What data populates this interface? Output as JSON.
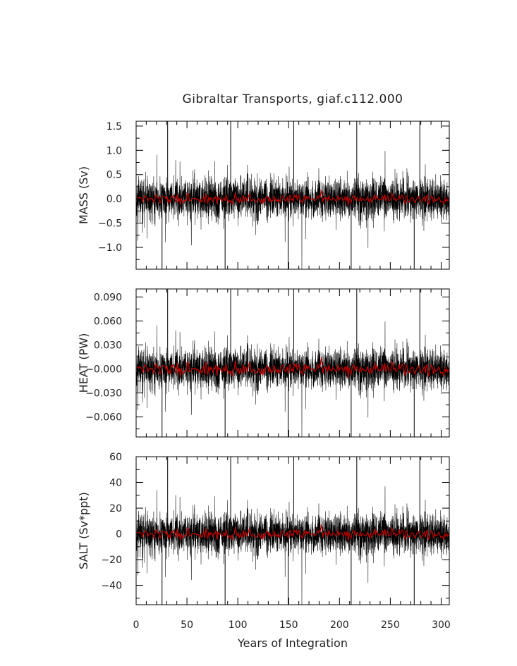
{
  "chart_data": {
    "type": "line",
    "title": "Gibraltar Transports, giaf.c112.000",
    "xlabel": "Years of Integration",
    "xlim": [
      0,
      308
    ],
    "x_ticks": [
      "0",
      "50",
      "100",
      "150",
      "200",
      "250",
      "300"
    ],
    "x_tick_values": [
      0,
      50,
      100,
      150,
      200,
      250,
      300
    ],
    "series_colors": {
      "monthly": "#000000",
      "annual": "#cc0000"
    },
    "spike_years": [
      31,
      93,
      155,
      217,
      279
    ],
    "panels": [
      {
        "ylabel": "MASS (Sv)",
        "ylim": [
          -1.45,
          1.6
        ],
        "y_tick_values": [
          1.5,
          1.0,
          0.5,
          0.0,
          -0.5,
          -1.0
        ],
        "y_ticks": [
          "1.5",
          "1.0",
          "0.5",
          "0.0",
          "−0.5",
          "−1.0"
        ],
        "noise_std": 0.2,
        "spike_high": 1.6,
        "spike_low": -1.45,
        "annual_amplitude": 0.05
      },
      {
        "ylabel": "HEAT (PW)",
        "ylim": [
          -0.085,
          0.1
        ],
        "y_tick_values": [
          0.09,
          0.06,
          0.03,
          0.0,
          -0.03,
          -0.06
        ],
        "y_ticks": [
          "0.090",
          "0.060",
          "0.030",
          "−0.000",
          "−0.030",
          "−0.060"
        ],
        "noise_std": 0.012,
        "spike_high": 0.1,
        "spike_low": -0.085,
        "annual_amplitude": 0.004
      },
      {
        "ylabel": "SALT (Sv*ppt)",
        "ylim": [
          -55,
          60
        ],
        "y_tick_values": [
          60,
          40,
          20,
          0,
          -20,
          -40
        ],
        "y_ticks": [
          "60",
          "40",
          "20",
          "0",
          "−20",
          "−40"
        ],
        "noise_std": 7.5,
        "spike_high": 60,
        "spike_low": -55,
        "annual_amplitude": 2
      }
    ]
  }
}
